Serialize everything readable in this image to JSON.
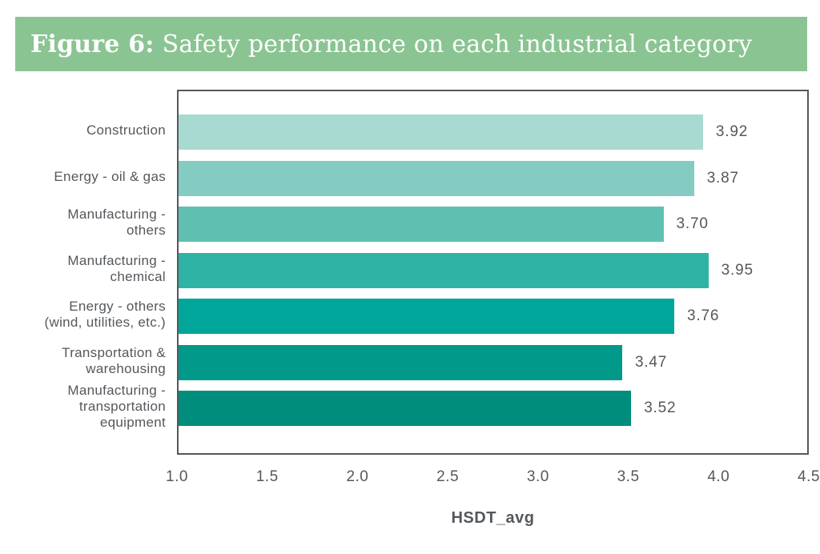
{
  "header": {
    "figure_label": "Figure 6:",
    "title": "Safety performance on each industrial category",
    "bg_color": "#8AC492",
    "text_color": "#FFFFFF"
  },
  "chart_data": {
    "type": "bar",
    "orientation": "horizontal",
    "title": "Figure 6: Safety performance on each industrial category",
    "categories": [
      "Construction",
      "Energy - oil & gas",
      "Manufacturing - others",
      "Manufacturing - chemical",
      "Energy - others (wind, utilities, etc.)",
      "Transportation & warehousing",
      "Manufacturing - transportation equipment"
    ],
    "category_lines": [
      [
        "Construction"
      ],
      [
        "Energy - oil & gas"
      ],
      [
        "Manufacturing -",
        "others"
      ],
      [
        "Manufacturing -",
        "chemical"
      ],
      [
        "Energy - others",
        "(wind, utilities, etc.)"
      ],
      [
        "Transportation &",
        "warehousing"
      ],
      [
        "Manufacturing -",
        "transportation",
        "equipment"
      ]
    ],
    "values": [
      3.92,
      3.87,
      3.7,
      3.95,
      3.76,
      3.47,
      3.52
    ],
    "value_labels": [
      "3.92",
      "3.87",
      "3.70",
      "3.95",
      "3.76",
      "3.47",
      "3.52"
    ],
    "bar_colors": [
      "#A8DAD1",
      "#84CCC2",
      "#5FC0B2",
      "#2EB3A4",
      "#00A699",
      "#00998A",
      "#008D7C"
    ],
    "xlabel": "HSDT_avg",
    "ylabel": "",
    "xlim": [
      1.0,
      4.5
    ],
    "x_ticks": [
      "1.0",
      "1.5",
      "2.0",
      "2.5",
      "3.0",
      "3.5",
      "4.0",
      "4.5"
    ],
    "grid": false,
    "legend": false,
    "text_color": "#54585C",
    "border_color": "#55585C"
  }
}
